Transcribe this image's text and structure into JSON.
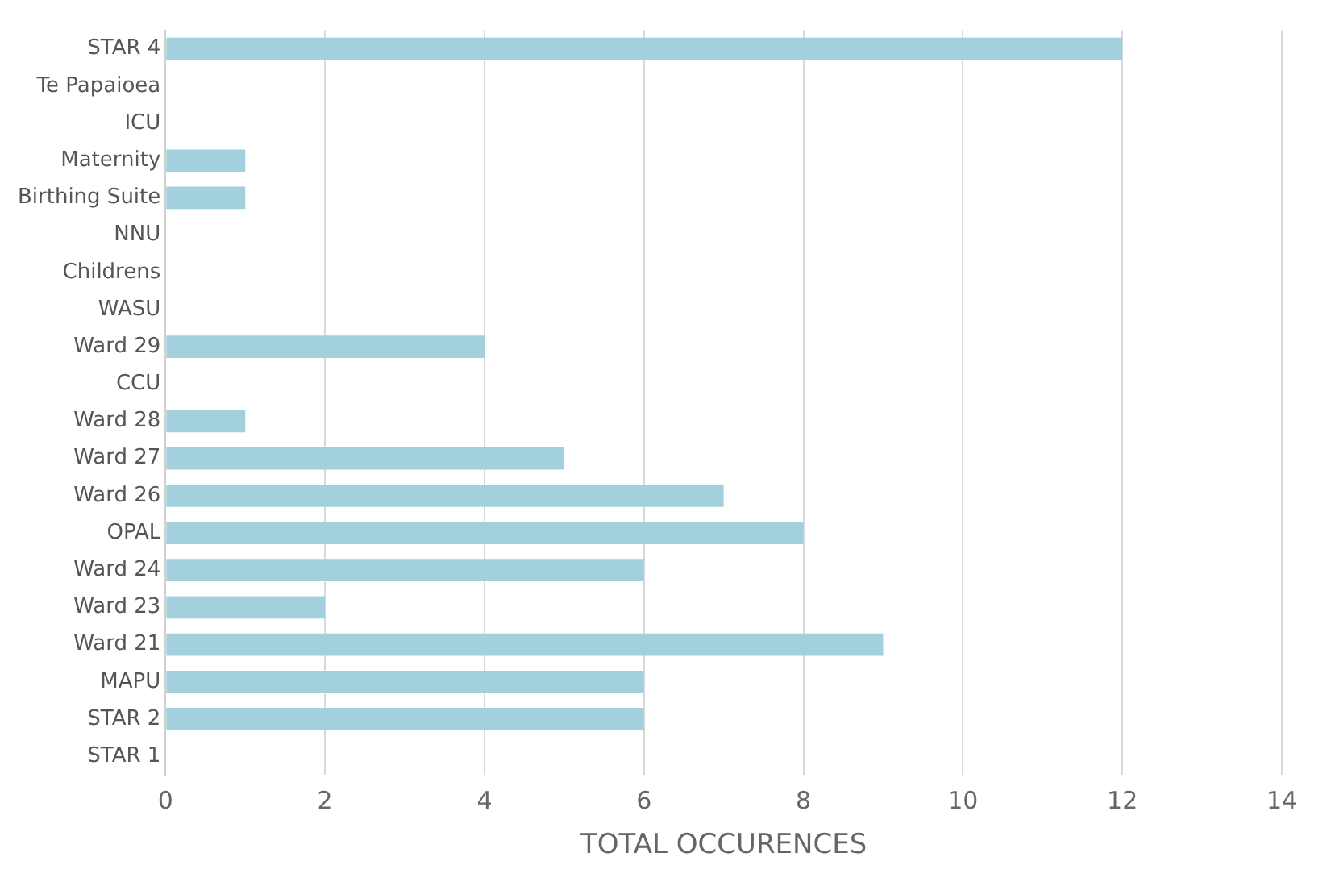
{
  "chart_data": {
    "type": "bar",
    "orientation": "horizontal",
    "xlabel": "TOTAL OCCURENCES",
    "categories": [
      "STAR 4",
      "Te Papaioea",
      "ICU",
      "Maternity",
      "Birthing Suite",
      "NNU",
      "Childrens",
      "WASU",
      "Ward 29",
      "CCU",
      "Ward 28",
      "Ward 27",
      "Ward 26",
      "OPAL",
      "Ward 24",
      "Ward 23",
      "Ward 21",
      "MAPU",
      "STAR 2",
      "STAR 1"
    ],
    "values": [
      12,
      0,
      0,
      1,
      1,
      0,
      0,
      0,
      4,
      0,
      1,
      5,
      7,
      8,
      6,
      2,
      9,
      6,
      6,
      0
    ],
    "color": "#a3d0dd",
    "xlim": [
      0,
      14
    ],
    "xticks": [
      0,
      2,
      4,
      6,
      8,
      10,
      12,
      14
    ],
    "grid": "x",
    "legend": false
  }
}
